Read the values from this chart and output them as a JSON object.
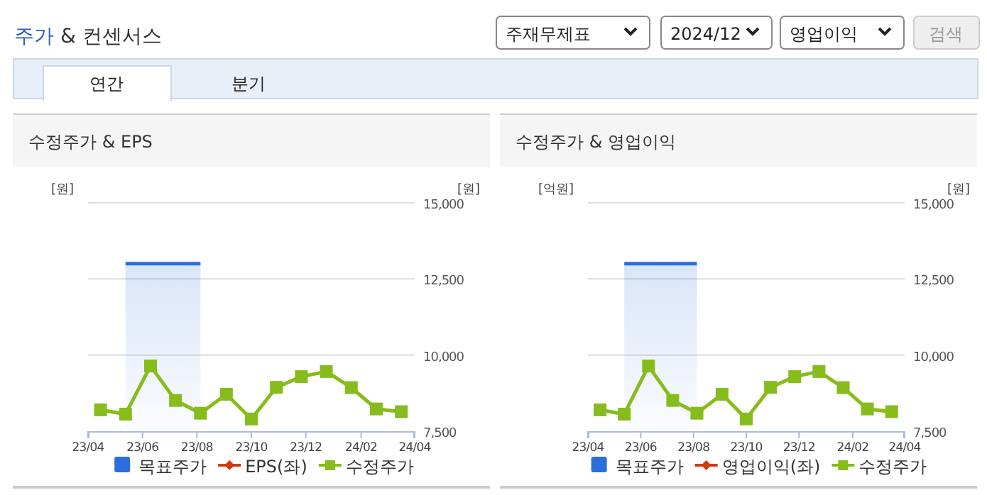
{
  "chart_data": [
    {
      "type": "other",
      "title": "주가 & 컨센서스",
      "annotations": [
        "주재무제표",
        "2024/12",
        "영업이익",
        "검색",
        "연간",
        "분기"
      ]
    },
    {
      "type": "line",
      "title": "수정주가 & EPS",
      "ylabel": "[원]",
      "y2label": "[원]",
      "legend": "bottom",
      "grid": "y",
      "xlim": [
        "2023-04",
        "2024-04"
      ],
      "xticks": [
        {
          "value": "2023-04",
          "label": "23/04"
        },
        {
          "value": "2023-06",
          "label": "23/06"
        },
        {
          "value": "2023-08",
          "label": "23/08"
        },
        {
          "value": "2023-10",
          "label": "23/10"
        },
        {
          "value": "2023-12",
          "label": "23/12"
        },
        {
          "value": "2024-02",
          "label": "24/02"
        },
        {
          "value": "2024-04",
          "label": "24/04"
        }
      ],
      "y2lim": [
        7500,
        15000
      ],
      "y2ticks": [
        {
          "value": 7500,
          "label": "7,500"
        },
        {
          "value": 10000,
          "label": "10,000"
        },
        {
          "value": 12500,
          "label": "12,500"
        },
        {
          "value": 15000,
          "label": "15,000"
        }
      ],
      "series": [
        {
          "name": "목표주가",
          "type": "area",
          "axis": "y2",
          "color": "#2a6fdb",
          "x": [
            "2023-05-13",
            "2023-08-05"
          ],
          "values": [
            13000,
            13000
          ]
        },
        {
          "name": "EPS(좌)",
          "type": "line",
          "color": "#d03a10",
          "marker": "diamond"
        },
        {
          "name": "수정주가",
          "type": "line",
          "axis": "y2",
          "color": "#86bc1b",
          "marker": "square",
          "x": [
            "2023-04-15",
            "2023-05-13",
            "2023-06-10",
            "2023-07-08",
            "2023-08-05",
            "2023-09-03",
            "2023-10-01",
            "2023-10-29",
            "2023-11-26",
            "2023-12-24",
            "2024-01-21",
            "2024-02-18",
            "2024-03-17"
          ],
          "values": [
            8200,
            8060,
            9640,
            8510,
            8090,
            8710,
            7900,
            8940,
            9290,
            9460,
            8930,
            8230,
            8140
          ]
        }
      ]
    },
    {
      "type": "line",
      "title": "수정주가 & 영업이익",
      "ylabel": "[억원]",
      "y2label": "[원]",
      "legend": "bottom",
      "grid": "y",
      "xlim": [
        "2023-04",
        "2024-04"
      ],
      "xticks": [
        {
          "value": "2023-04",
          "label": "23/04"
        },
        {
          "value": "2023-06",
          "label": "23/06"
        },
        {
          "value": "2023-08",
          "label": "23/08"
        },
        {
          "value": "2023-10",
          "label": "23/10"
        },
        {
          "value": "2023-12",
          "label": "23/12"
        },
        {
          "value": "2024-02",
          "label": "24/02"
        },
        {
          "value": "2024-04",
          "label": "24/04"
        }
      ],
      "y2lim": [
        7500,
        15000
      ],
      "y2ticks": [
        {
          "value": 7500,
          "label": "7,500"
        },
        {
          "value": 10000,
          "label": "10,000"
        },
        {
          "value": 12500,
          "label": "12,500"
        },
        {
          "value": 15000,
          "label": "15,000"
        }
      ],
      "series": [
        {
          "name": "목표주가",
          "type": "area",
          "axis": "y2",
          "color": "#2a6fdb",
          "x": [
            "2023-05-13",
            "2023-08-05"
          ],
          "values": [
            13000,
            13000
          ]
        },
        {
          "name": "영업이익(좌)",
          "type": "line",
          "color": "#d03a10",
          "marker": "diamond"
        },
        {
          "name": "수정주가",
          "type": "line",
          "axis": "y2",
          "color": "#86bc1b",
          "marker": "square",
          "x": [
            "2023-04-15",
            "2023-05-13",
            "2023-06-10",
            "2023-07-08",
            "2023-08-05",
            "2023-09-03",
            "2023-10-01",
            "2023-10-29",
            "2023-11-26",
            "2023-12-24",
            "2024-01-21",
            "2024-02-18",
            "2024-03-17"
          ],
          "values": [
            8200,
            8060,
            9640,
            8510,
            8090,
            8710,
            7900,
            8940,
            9290,
            9460,
            8930,
            8230,
            8140
          ]
        }
      ]
    }
  ]
}
